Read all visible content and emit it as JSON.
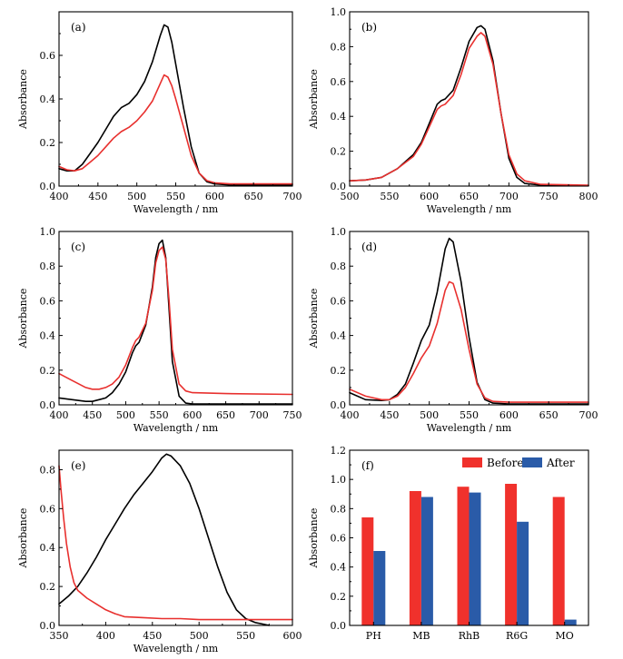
{
  "colors": {
    "black": "#000000",
    "red": "#e8302e",
    "blue": "#2a5ba8",
    "before": "#f0312c",
    "after": "#2a5ba8"
  },
  "chart_data": [
    {
      "type": "line",
      "panel_label": "(a)",
      "xlabel": "Wavelength / nm",
      "ylabel": "Absorbance",
      "xlim": [
        400,
        700
      ],
      "ylim": [
        0,
        0.8
      ],
      "xticks": [
        400,
        450,
        500,
        550,
        600,
        650,
        700
      ],
      "yticks": [
        0.0,
        0.2,
        0.4,
        0.6
      ],
      "series": [
        {
          "color": "black",
          "x": [
            400,
            410,
            420,
            430,
            440,
            450,
            460,
            470,
            480,
            490,
            500,
            510,
            520,
            530,
            535,
            540,
            545,
            550,
            560,
            570,
            580,
            590,
            600,
            620,
            650,
            700
          ],
          "y": [
            0.08,
            0.07,
            0.07,
            0.1,
            0.15,
            0.2,
            0.26,
            0.32,
            0.36,
            0.38,
            0.42,
            0.48,
            0.57,
            0.69,
            0.74,
            0.73,
            0.66,
            0.56,
            0.36,
            0.18,
            0.06,
            0.02,
            0.01,
            0.005,
            0.005,
            0.005
          ]
        },
        {
          "color": "red",
          "x": [
            400,
            410,
            420,
            430,
            440,
            450,
            460,
            470,
            480,
            490,
            500,
            510,
            520,
            530,
            535,
            540,
            545,
            550,
            560,
            570,
            580,
            590,
            600,
            620,
            650,
            700
          ],
          "y": [
            0.09,
            0.075,
            0.07,
            0.08,
            0.11,
            0.14,
            0.18,
            0.22,
            0.25,
            0.27,
            0.3,
            0.34,
            0.39,
            0.47,
            0.51,
            0.5,
            0.46,
            0.4,
            0.27,
            0.14,
            0.06,
            0.025,
            0.015,
            0.01,
            0.01,
            0.01
          ]
        }
      ]
    },
    {
      "type": "line",
      "panel_label": "(b)",
      "xlabel": "Wavelength / nm",
      "ylabel": "Absorbance",
      "xlim": [
        500,
        800
      ],
      "ylim": [
        0,
        1.0
      ],
      "xticks": [
        500,
        550,
        600,
        650,
        700,
        750,
        800
      ],
      "yticks": [
        0.0,
        0.2,
        0.4,
        0.6,
        0.8,
        1.0
      ],
      "series": [
        {
          "color": "black",
          "x": [
            500,
            520,
            540,
            560,
            580,
            590,
            600,
            610,
            615,
            620,
            630,
            640,
            650,
            660,
            665,
            670,
            680,
            690,
            700,
            710,
            720,
            740,
            800
          ],
          "y": [
            0.03,
            0.035,
            0.05,
            0.1,
            0.18,
            0.25,
            0.36,
            0.47,
            0.49,
            0.5,
            0.55,
            0.68,
            0.83,
            0.91,
            0.92,
            0.9,
            0.72,
            0.42,
            0.16,
            0.05,
            0.015,
            0.005,
            0.003
          ]
        },
        {
          "color": "red",
          "x": [
            500,
            520,
            540,
            560,
            580,
            590,
            600,
            610,
            615,
            620,
            630,
            640,
            650,
            660,
            665,
            670,
            680,
            690,
            700,
            710,
            720,
            740,
            800
          ],
          "y": [
            0.03,
            0.035,
            0.05,
            0.1,
            0.17,
            0.24,
            0.34,
            0.44,
            0.46,
            0.47,
            0.52,
            0.64,
            0.79,
            0.86,
            0.88,
            0.86,
            0.7,
            0.42,
            0.18,
            0.07,
            0.03,
            0.01,
            0.005
          ]
        }
      ]
    },
    {
      "type": "line",
      "panel_label": "(c)",
      "xlabel": "Wavelength / nm",
      "ylabel": "Absorbance",
      "xlim": [
        400,
        750
      ],
      "ylim": [
        0,
        1.0
      ],
      "xticks": [
        400,
        450,
        500,
        550,
        600,
        650,
        700,
        750
      ],
      "yticks": [
        0.0,
        0.2,
        0.4,
        0.6,
        0.8,
        1.0
      ],
      "series": [
        {
          "color": "black",
          "x": [
            400,
            420,
            440,
            450,
            460,
            470,
            480,
            490,
            500,
            510,
            515,
            520,
            530,
            540,
            545,
            550,
            555,
            560,
            565,
            570,
            580,
            590,
            600,
            650,
            750
          ],
          "y": [
            0.04,
            0.03,
            0.02,
            0.02,
            0.03,
            0.04,
            0.07,
            0.12,
            0.19,
            0.3,
            0.34,
            0.36,
            0.46,
            0.68,
            0.85,
            0.93,
            0.95,
            0.85,
            0.55,
            0.25,
            0.05,
            0.01,
            0.005,
            0.005,
            0.005
          ]
        },
        {
          "color": "red",
          "x": [
            400,
            420,
            440,
            450,
            460,
            470,
            480,
            490,
            500,
            510,
            515,
            520,
            530,
            540,
            545,
            550,
            555,
            560,
            565,
            570,
            580,
            590,
            600,
            650,
            750
          ],
          "y": [
            0.18,
            0.14,
            0.1,
            0.09,
            0.09,
            0.1,
            0.12,
            0.16,
            0.23,
            0.33,
            0.37,
            0.39,
            0.47,
            0.66,
            0.82,
            0.89,
            0.91,
            0.84,
            0.6,
            0.32,
            0.12,
            0.08,
            0.07,
            0.065,
            0.06
          ]
        }
      ]
    },
    {
      "type": "line",
      "panel_label": "(d)",
      "xlabel": "Wavelength / nm",
      "ylabel": "Absorbance",
      "xlim": [
        400,
        700
      ],
      "ylim": [
        0,
        1.0
      ],
      "xticks": [
        400,
        450,
        500,
        550,
        600,
        650,
        700
      ],
      "yticks": [
        0.0,
        0.2,
        0.4,
        0.6,
        0.8,
        1.0
      ],
      "series": [
        {
          "color": "black",
          "x": [
            400,
            420,
            440,
            450,
            460,
            470,
            480,
            490,
            500,
            510,
            520,
            525,
            530,
            540,
            550,
            560,
            570,
            580,
            600,
            650,
            700
          ],
          "y": [
            0.07,
            0.03,
            0.025,
            0.03,
            0.06,
            0.12,
            0.24,
            0.37,
            0.46,
            0.65,
            0.9,
            0.96,
            0.94,
            0.71,
            0.39,
            0.13,
            0.03,
            0.01,
            0.005,
            0.005,
            0.005
          ]
        },
        {
          "color": "red",
          "x": [
            400,
            420,
            440,
            450,
            460,
            470,
            480,
            490,
            500,
            510,
            520,
            525,
            530,
            540,
            550,
            560,
            570,
            580,
            600,
            650,
            700
          ],
          "y": [
            0.09,
            0.05,
            0.03,
            0.03,
            0.05,
            0.1,
            0.18,
            0.27,
            0.34,
            0.47,
            0.66,
            0.71,
            0.7,
            0.55,
            0.32,
            0.12,
            0.04,
            0.02,
            0.015,
            0.015,
            0.015
          ]
        }
      ]
    },
    {
      "type": "line",
      "panel_label": "(e)",
      "xlabel": "Wavelength / nm",
      "ylabel": "Absorbance",
      "xlim": [
        350,
        600
      ],
      "ylim": [
        0,
        0.9
      ],
      "xticks": [
        350,
        400,
        450,
        500,
        550,
        600
      ],
      "yticks": [
        0.0,
        0.2,
        0.4,
        0.6,
        0.8
      ],
      "series": [
        {
          "color": "black",
          "x": [
            350,
            360,
            370,
            380,
            390,
            400,
            410,
            420,
            430,
            440,
            450,
            460,
            465,
            470,
            480,
            490,
            500,
            510,
            520,
            530,
            540,
            550,
            560,
            570,
            575
          ],
          "y": [
            0.11,
            0.15,
            0.2,
            0.27,
            0.35,
            0.44,
            0.52,
            0.6,
            0.67,
            0.73,
            0.79,
            0.86,
            0.88,
            0.87,
            0.82,
            0.73,
            0.6,
            0.45,
            0.3,
            0.17,
            0.08,
            0.035,
            0.015,
            0.005,
            0.0
          ]
        },
        {
          "color": "red",
          "x": [
            350,
            352,
            355,
            358,
            362,
            366,
            370,
            380,
            390,
            400,
            410,
            420,
            440,
            460,
            480,
            500,
            550,
            600
          ],
          "y": [
            0.82,
            0.7,
            0.55,
            0.42,
            0.3,
            0.22,
            0.18,
            0.14,
            0.11,
            0.08,
            0.06,
            0.045,
            0.04,
            0.035,
            0.035,
            0.03,
            0.03,
            0.03
          ]
        }
      ]
    },
    {
      "type": "bar",
      "panel_label": "(f)",
      "ylabel": "Absorbance",
      "ylim": [
        0,
        1.2
      ],
      "yticks": [
        0.0,
        0.2,
        0.4,
        0.6,
        0.8,
        1.0,
        1.2
      ],
      "categories": [
        "PH",
        "MB",
        "RhB",
        "R6G",
        "MO"
      ],
      "legend_position": "top-right",
      "series": [
        {
          "name": "Before",
          "color": "before",
          "values": [
            0.74,
            0.92,
            0.95,
            0.97,
            0.88
          ]
        },
        {
          "name": "After",
          "color": "after",
          "values": [
            0.51,
            0.88,
            0.91,
            0.71,
            0.04
          ]
        }
      ]
    }
  ]
}
